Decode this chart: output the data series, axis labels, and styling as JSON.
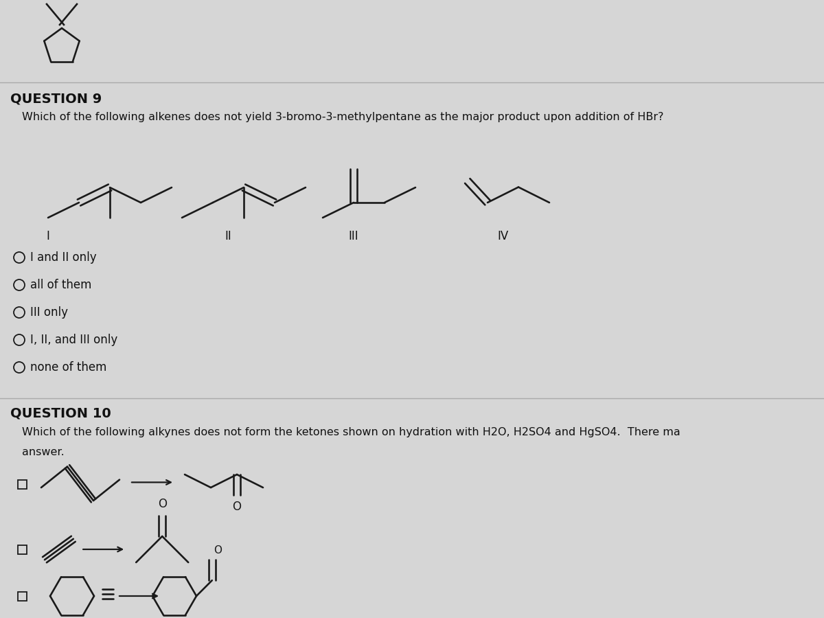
{
  "bg_color": "#d6d6d6",
  "q9_title": "QUESTION 9",
  "q9_text": "Which of the following alkenes does not yield 3-bromo-3-methylpentane as the major product upon addition of HBr?",
  "q9_options": [
    "I and II only",
    "all of them",
    "III only",
    "I, II, and III only",
    "none of them"
  ],
  "q10_title": "QUESTION 10",
  "q10_text1": "Which of the following alkynes does not form the ketones shown on hydration with H2O, H2SO4 and HgSO4.  There ma",
  "q10_text2": "answer.",
  "text_color": "#111111",
  "struct_color": "#1a1a1a"
}
